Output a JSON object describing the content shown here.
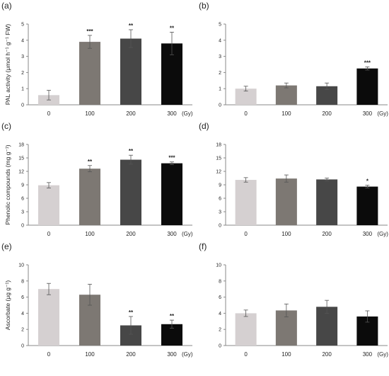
{
  "chart_data": [
    {
      "panel": "(a)",
      "type": "bar",
      "categories": [
        "0",
        "100",
        "200",
        "300"
      ],
      "x_unit": "(Gy)",
      "values": [
        0.6,
        3.9,
        4.1,
        3.8
      ],
      "errors": [
        0.3,
        0.4,
        0.55,
        0.7
      ],
      "significance": [
        "",
        "***",
        "**",
        "**"
      ],
      "ylabel": "PAL activity (μmol h⁻¹ g⁻¹ FW)",
      "ylim": [
        0,
        5
      ],
      "yticks": [
        "0",
        "1",
        "2",
        "3",
        "4",
        "5"
      ],
      "colors": [
        "#d5d0d1",
        "#7d7873",
        "#474747",
        "#0b0b0b"
      ]
    },
    {
      "panel": "(b)",
      "type": "bar",
      "categories": [
        "0",
        "100",
        "200",
        "300"
      ],
      "x_unit": "(Gy)",
      "values": [
        1.0,
        1.2,
        1.15,
        2.25
      ],
      "errors": [
        0.15,
        0.15,
        0.2,
        0.1
      ],
      "significance": [
        "",
        "",
        "",
        "***"
      ],
      "ylabel": "",
      "ylim": [
        0,
        5
      ],
      "yticks": [
        "0",
        "1",
        "2",
        "3",
        "4",
        "5"
      ],
      "colors": [
        "#d5d0d1",
        "#7d7873",
        "#474747",
        "#0b0b0b"
      ]
    },
    {
      "panel": "(c)",
      "type": "bar",
      "categories": [
        "0",
        "100",
        "200",
        "300"
      ],
      "x_unit": "(Gy)",
      "values": [
        8.9,
        12.6,
        14.6,
        13.8
      ],
      "errors": [
        0.6,
        0.7,
        1.0,
        0.3
      ],
      "significance": [
        "",
        "**",
        "**",
        "***"
      ],
      "ylabel": "Phenolic compounds (mg g⁻¹)",
      "ylim": [
        0,
        18
      ],
      "yticks": [
        "0",
        "3",
        "6",
        "9",
        "12",
        "15",
        "18"
      ],
      "colors": [
        "#d5d0d1",
        "#7d7873",
        "#474747",
        "#0b0b0b"
      ]
    },
    {
      "panel": "(d)",
      "type": "bar",
      "categories": [
        "0",
        "100",
        "200",
        "300"
      ],
      "x_unit": "(Gy)",
      "values": [
        10.1,
        10.4,
        10.2,
        8.6
      ],
      "errors": [
        0.5,
        0.8,
        0.3,
        0.3
      ],
      "significance": [
        "",
        "",
        "",
        "*"
      ],
      "ylabel": "",
      "ylim": [
        0,
        18
      ],
      "yticks": [
        "0",
        "3",
        "6",
        "9",
        "12",
        "15",
        "18"
      ],
      "colors": [
        "#d5d0d1",
        "#7d7873",
        "#474747",
        "#0b0b0b"
      ]
    },
    {
      "panel": "(e)",
      "type": "bar",
      "categories": [
        "0",
        "100",
        "200",
        "300"
      ],
      "x_unit": "(Gy)",
      "values": [
        7.0,
        6.3,
        2.5,
        2.65
      ],
      "errors": [
        0.7,
        1.3,
        1.1,
        0.5
      ],
      "significance": [
        "",
        "",
        "**",
        "**"
      ],
      "ylabel": "Ascorbate (μg g⁻¹)",
      "ylim": [
        0,
        10
      ],
      "yticks": [
        "0",
        "2",
        "4",
        "6",
        "8",
        "10"
      ],
      "colors": [
        "#d5d0d1",
        "#7d7873",
        "#474747",
        "#0b0b0b"
      ]
    },
    {
      "panel": "(f)",
      "type": "bar",
      "categories": [
        "0",
        "100",
        "200",
        "300"
      ],
      "x_unit": "(Gy)",
      "values": [
        4.0,
        4.35,
        4.8,
        3.6
      ],
      "errors": [
        0.4,
        0.8,
        0.8,
        0.7
      ],
      "significance": [
        "",
        "",
        "",
        ""
      ],
      "ylabel": "",
      "ylim": [
        0,
        10
      ],
      "yticks": [
        "0",
        "2",
        "4",
        "6",
        "8",
        "10"
      ],
      "colors": [
        "#d5d0d1",
        "#7d7873",
        "#474747",
        "#0b0b0b"
      ]
    }
  ]
}
